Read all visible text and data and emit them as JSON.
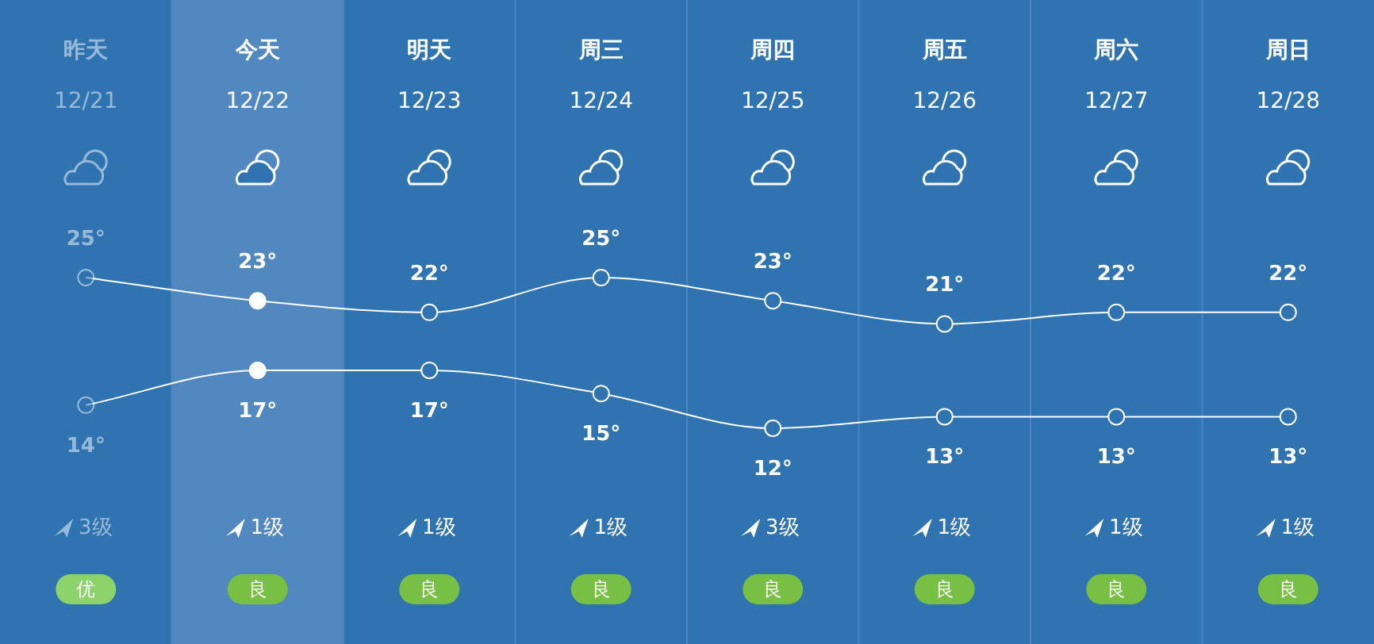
{
  "chart_data": {
    "type": "line",
    "categories": [
      "昨天",
      "今天",
      "明天",
      "周三",
      "周四",
      "周五",
      "周六",
      "周日"
    ],
    "series": [
      {
        "color": "#ffffff",
        "values": [
          25,
          23,
          22,
          25,
          23,
          21,
          22,
          22
        ],
        "value_labels": [
          "25°",
          "23°",
          "22°",
          "25°",
          "23°",
          "21°",
          "22°",
          "22°"
        ]
      },
      {
        "color": "#ffffff",
        "values": [
          14,
          17,
          17,
          15,
          12,
          13,
          13,
          13
        ],
        "value_labels": [
          "14°",
          "17°",
          "17°",
          "15°",
          "12°",
          "13°",
          "13°",
          "13°"
        ]
      }
    ],
    "marker": "circle",
    "grid": "x",
    "bands": [
      {
        "axis": "x",
        "from": "今天",
        "to": "今天",
        "color": "#5088bf"
      }
    ],
    "annotations": [
      "12/21",
      "3级",
      "优",
      "12/22",
      "1级",
      "良",
      "12/23",
      "1级",
      "良",
      "12/24",
      "1级",
      "良",
      "12/25",
      "3级",
      "良",
      "12/26",
      "1级",
      "良",
      "12/27",
      "1级",
      "良",
      "12/28",
      "1级",
      "良"
    ]
  }
}
